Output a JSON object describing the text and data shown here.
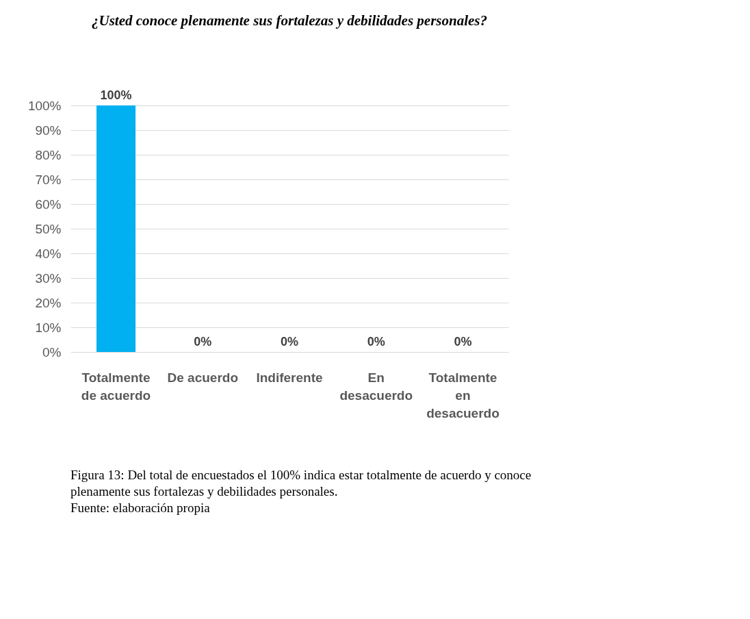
{
  "chart_data": {
    "type": "bar",
    "title": "¿Usted conoce plenamente sus fortalezas y debilidades personales?",
    "categories": [
      "Totalmente de acuerdo",
      "De acuerdo",
      "Indiferente",
      "En desacuerdo",
      "Totalmente en desacuerdo"
    ],
    "values": [
      100,
      0,
      0,
      0,
      0
    ],
    "colors": [
      "#00b0f0",
      "#c4c400",
      "#595959",
      "#c0622a",
      "#00843d"
    ],
    "value_labels": [
      "100%",
      "0%",
      "0%",
      "0%",
      "0%"
    ],
    "ylim": [
      0,
      100
    ],
    "yticks": [
      {
        "value": 0,
        "label": "0%"
      },
      {
        "value": 10,
        "label": "10%"
      },
      {
        "value": 20,
        "label": "20%"
      },
      {
        "value": 30,
        "label": "30%"
      },
      {
        "value": 40,
        "label": "40%"
      },
      {
        "value": 50,
        "label": "50%"
      },
      {
        "value": 60,
        "label": "60%"
      },
      {
        "value": 70,
        "label": "70%"
      },
      {
        "value": 80,
        "label": "80%"
      },
      {
        "value": 90,
        "label": "90%"
      },
      {
        "value": 100,
        "label": "100%"
      }
    ],
    "grid": "y",
    "annotations": [
      "Figura 13: Del total de encuestados el 100% indica estar totalmente de acuerdo y conoce plenamente sus fortalezas y debilidades personales.",
      "Fuente: elaboración propia"
    ]
  }
}
